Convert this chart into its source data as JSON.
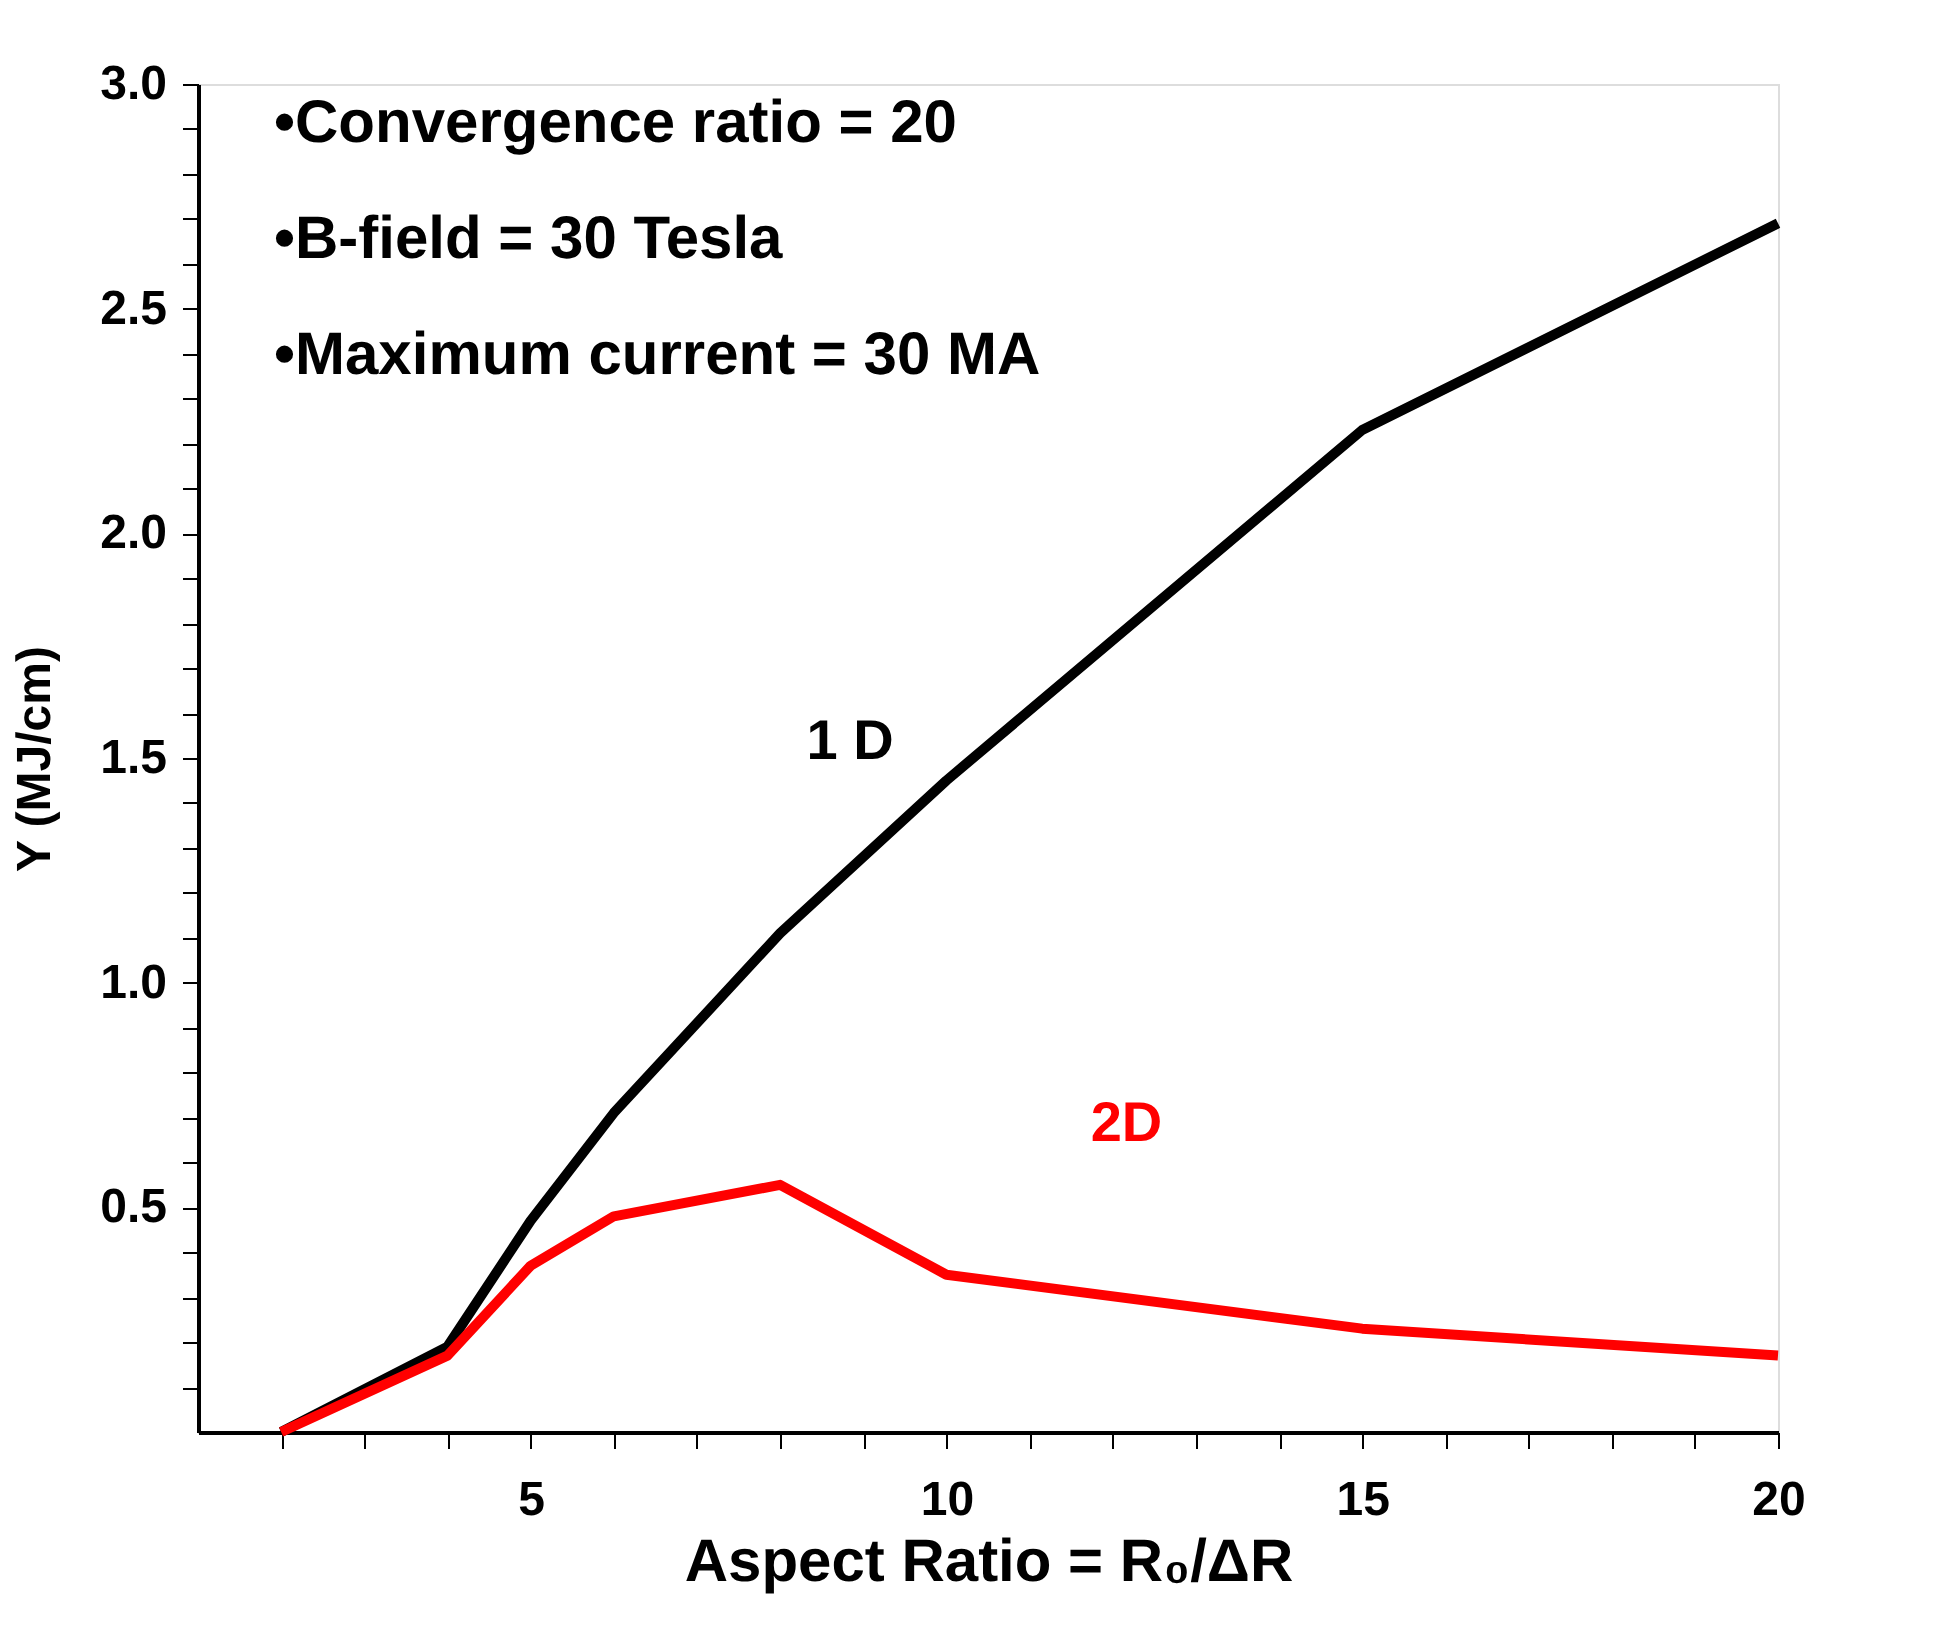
{
  "chart_data": {
    "type": "line",
    "xlabel": "Aspect Ratio = R₀/ΔR",
    "ylabel": "Y (MJ/cm)",
    "x": [
      2,
      4,
      5,
      6,
      8,
      10,
      15,
      20
    ],
    "series": [
      {
        "name": "1 D",
        "color": "#000000",
        "values": [
          0,
          0.19,
          0.47,
          0.71,
          1.11,
          1.45,
          2.23,
          2.69
        ]
      },
      {
        "name": "2D",
        "color": "#ff0000",
        "values": [
          0,
          0.17,
          0.37,
          0.48,
          0.55,
          0.35,
          0.23,
          0.17
        ]
      }
    ],
    "xlim": [
      1,
      20
    ],
    "xticks": [
      {
        "value": 2,
        "label": null
      },
      {
        "value": 3,
        "label": null
      },
      {
        "value": 4,
        "label": null
      },
      5,
      {
        "value": 6,
        "label": null
      },
      {
        "value": 7,
        "label": null
      },
      {
        "value": 8,
        "label": null
      },
      {
        "value": 9,
        "label": null
      },
      10,
      {
        "value": 11,
        "label": null
      },
      {
        "value": 12,
        "label": null
      },
      {
        "value": 13,
        "label": null
      },
      {
        "value": 14,
        "label": null
      },
      15,
      {
        "value": 16,
        "label": null
      },
      {
        "value": 17,
        "label": null
      },
      {
        "value": 18,
        "label": null
      },
      {
        "value": 19,
        "label": null
      },
      20
    ],
    "ylim": [
      0,
      3
    ],
    "yticks": [
      {
        "value": 0.1,
        "label": null
      },
      {
        "value": 0.2,
        "label": null
      },
      {
        "value": 0.3,
        "label": null
      },
      {
        "value": 0.4,
        "label": null
      },
      {
        "value": 0.5,
        "label": "0.5"
      },
      {
        "value": 0.6,
        "label": null
      },
      {
        "value": 0.7,
        "label": null
      },
      {
        "value": 0.8,
        "label": null
      },
      {
        "value": 0.9,
        "label": null
      },
      {
        "value": 1,
        "label": "1.0"
      },
      {
        "value": 1.1,
        "label": null
      },
      {
        "value": 1.2,
        "label": null
      },
      {
        "value": 1.3,
        "label": null
      },
      {
        "value": 1.4,
        "label": null
      },
      1.5,
      {
        "value": 1.6,
        "label": null
      },
      {
        "value": 1.7,
        "label": null
      },
      {
        "value": 1.8,
        "label": null
      },
      {
        "value": 1.9,
        "label": null
      },
      {
        "value": 2,
        "label": "2.0"
      },
      {
        "value": 2.1,
        "label": null
      },
      {
        "value": 2.2,
        "label": null
      },
      {
        "value": 2.3,
        "label": null
      },
      {
        "value": 2.4,
        "label": null
      },
      2.5,
      {
        "value": 2.6,
        "label": null
      },
      {
        "value": 2.7,
        "label": null
      },
      {
        "value": 2.8,
        "label": null
      },
      {
        "value": 2.9,
        "label": null
      },
      {
        "value": 3,
        "label": "3.0"
      }
    ],
    "annotations": [
      "•Convergence ratio = 20",
      "•B-field = 30 Tesla",
      "•Maximum current = 30 MA"
    ],
    "grid": false,
    "legend": false,
    "marker": "none",
    "line_style": "solid"
  }
}
